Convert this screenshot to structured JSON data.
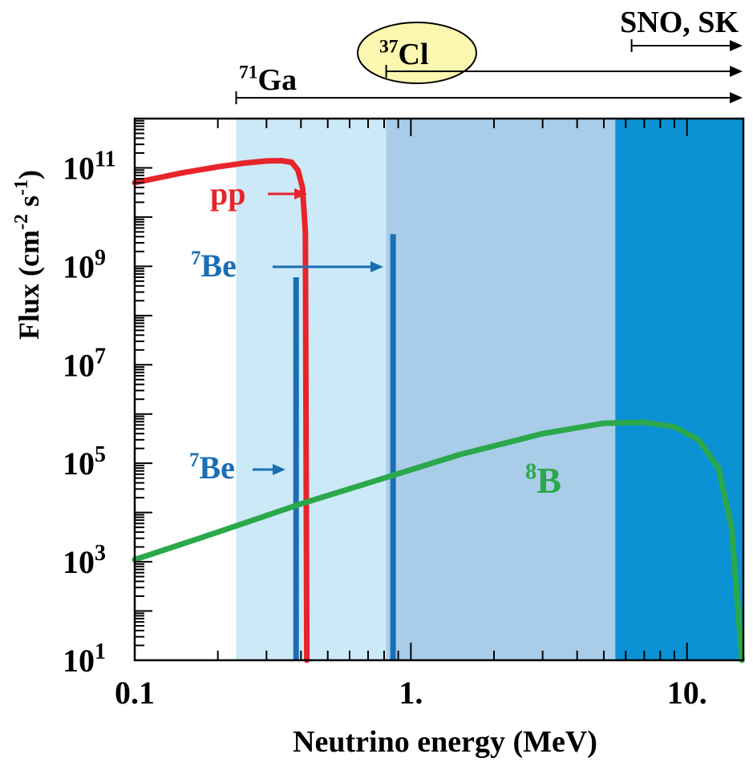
{
  "chart_data": {
    "type": "line",
    "title": "",
    "xlabel": "Neutrino energy (MeV)",
    "ylabel": "Flux (cm-2 s-1)",
    "xscale": "log",
    "yscale": "log",
    "xlim": [
      0.1,
      16
    ],
    "ylim": [
      10,
      1000000000000.0
    ],
    "xticklabels": [
      "0.1",
      "1.",
      "10."
    ],
    "yticklabels": [
      {
        "base": "10",
        "exp": "1",
        "value": 10
      },
      {
        "base": "10",
        "exp": "3",
        "value": 1000
      },
      {
        "base": "10",
        "exp": "5",
        "value": 100000
      },
      {
        "base": "10",
        "exp": "7",
        "value": 10000000
      },
      {
        "base": "10",
        "exp": "9",
        "value": 1000000000
      },
      {
        "base": "10",
        "exp": "11",
        "value": 100000000000
      }
    ],
    "bands": [
      {
        "name": "71Ga",
        "from": 0.233,
        "to": 16,
        "color": "#cce9f7"
      },
      {
        "name": "37Cl",
        "from": 0.814,
        "to": 16,
        "color": "#a9cce9"
      },
      {
        "name": "SNO, SK",
        "from": 5.5,
        "to": 16,
        "color": "#0a92d4"
      }
    ],
    "series": [
      {
        "name": "pp",
        "color": "#e8242b",
        "x": [
          0.1,
          0.15,
          0.2,
          0.25,
          0.3,
          0.34,
          0.37,
          0.39,
          0.405,
          0.415,
          0.42
        ],
        "y": [
          50000000000.0,
          80000000000.0,
          105000000000.0,
          125000000000.0,
          138000000000.0,
          140000000000.0,
          130000000000.0,
          90000000000.0,
          40000000000.0,
          5000000000.0,
          10
        ]
      },
      {
        "name": "7Be",
        "color": "#1a6fb4",
        "type": "line-spectrum",
        "x": [
          0.384,
          0.862
        ],
        "y": [
          600000000.0,
          4500000000.0
        ]
      },
      {
        "name": "8B",
        "color": "#2aa84a",
        "x": [
          0.1,
          0.2,
          0.4,
          0.8,
          1.5,
          3,
          5,
          7,
          9,
          11,
          13,
          14.5,
          15.8
        ],
        "y": [
          1100,
          4000,
          15000,
          50000,
          150000,
          400000,
          650000,
          680000,
          550000,
          300000,
          80000,
          5000,
          10
        ]
      }
    ],
    "annotations": {
      "pp_label": "pp",
      "be7_label_upper": {
        "sup": "7",
        "text": "Be"
      },
      "be7_label_lower": {
        "sup": "7",
        "text": "Be"
      },
      "b8_label": {
        "sup": "8",
        "text": "B"
      },
      "ga_label": {
        "sup": "71",
        "text": "Ga"
      },
      "cl_label": {
        "sup": "37",
        "text": "Cl"
      },
      "sno_label": "SNO, SK"
    },
    "grid": false,
    "legend": "none"
  }
}
